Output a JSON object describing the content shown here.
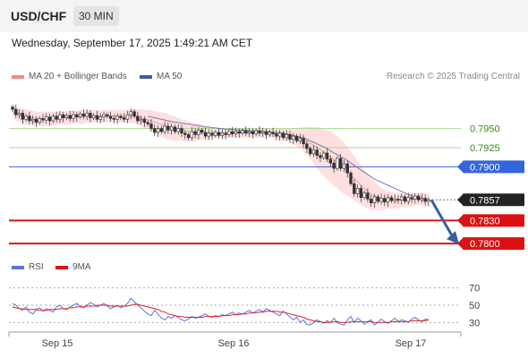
{
  "header": {
    "pair": "USD/CHF",
    "timeframe": "30 MIN"
  },
  "date": "Wednesday, September 17, 2025 1:49:21 AM CET",
  "legend": {
    "ma20": "MA 20 + Bollinger Bands",
    "ma50": "MA 50",
    "rsi": "RSI",
    "rsi9": "9MA",
    "copyright": "Research © 2025 Trading Central"
  },
  "colors": {
    "bands": "#ffd4d4",
    "ma20": "#e8a0a0",
    "ma50": "#6e7fb0",
    "green": "#a8d890",
    "blue": "#3366dd",
    "red": "#dd1111",
    "arrow": "#3a5f9e",
    "rsi": "#5577dd",
    "rsi9": "#dd2222"
  },
  "chart_data": {
    "type": "candlestick",
    "title": "USD/CHF",
    "ylim": [
      0.7785,
      0.7995
    ],
    "x_ticks": [
      "Sep 15",
      "Sep 16",
      "Sep 17"
    ],
    "current_price": 0.7857,
    "levels": [
      {
        "value": 0.795,
        "label": "0.7950",
        "kind": "resistance"
      },
      {
        "value": 0.7925,
        "label": "0.7925",
        "kind": "resistance"
      },
      {
        "value": 0.79,
        "label": "0.7900",
        "kind": "pivot"
      },
      {
        "value": 0.7857,
        "label": "0.7857",
        "kind": "last"
      },
      {
        "value": 0.783,
        "label": "0.7830",
        "kind": "support"
      },
      {
        "value": 0.78,
        "label": "0.7800",
        "kind": "support"
      }
    ],
    "close": [
      0.7975,
      0.7968,
      0.797,
      0.7962,
      0.7966,
      0.796,
      0.7962,
      0.7958,
      0.7963,
      0.7961,
      0.7965,
      0.796,
      0.7966,
      0.7962,
      0.7968,
      0.7964,
      0.7967,
      0.7963,
      0.7968,
      0.7965,
      0.7969,
      0.7966,
      0.797,
      0.7964,
      0.7967,
      0.7962,
      0.7965,
      0.7968,
      0.7966,
      0.7963,
      0.7962,
      0.7966,
      0.7964,
      0.7962,
      0.7968,
      0.7972,
      0.7966,
      0.796,
      0.7962,
      0.7958,
      0.7956,
      0.795,
      0.7945,
      0.795,
      0.7946,
      0.7953,
      0.7948,
      0.7952,
      0.7946,
      0.795,
      0.7944,
      0.7942,
      0.7938,
      0.7946,
      0.7942,
      0.7948,
      0.7945,
      0.794,
      0.7944,
      0.7941,
      0.7945,
      0.7941,
      0.7944,
      0.7942,
      0.7946,
      0.7943,
      0.7946,
      0.7944,
      0.7947,
      0.7944,
      0.7946,
      0.7943,
      0.7947,
      0.7944,
      0.7946,
      0.7942,
      0.7945,
      0.7943,
      0.794,
      0.7944,
      0.7938,
      0.7942,
      0.7936,
      0.794,
      0.7934,
      0.7937,
      0.793,
      0.7924,
      0.7917,
      0.7922,
      0.7915,
      0.7912,
      0.7918,
      0.791,
      0.7905,
      0.7898,
      0.7911,
      0.7898,
      0.7904,
      0.7892,
      0.7878,
      0.7865,
      0.7872,
      0.786,
      0.7866,
      0.7858,
      0.7853,
      0.7861,
      0.7855,
      0.7859,
      0.7854,
      0.786,
      0.7856,
      0.7858,
      0.7857,
      0.7861,
      0.7855,
      0.786,
      0.7858,
      0.7862,
      0.7857,
      0.7859,
      0.7855,
      0.7857
    ],
    "ma20": [
      0.7972,
      0.7969,
      0.7968,
      0.7966,
      0.7965,
      0.7964,
      0.7964,
      0.7963,
      0.7963,
      0.7962,
      0.7963,
      0.7962,
      0.7963,
      0.7963,
      0.7964,
      0.7964,
      0.7964,
      0.7964,
      0.7965,
      0.7965,
      0.7965,
      0.7965,
      0.7966,
      0.7966,
      0.7966,
      0.7966,
      0.7966,
      0.7966,
      0.7966,
      0.7966,
      0.7966,
      0.7966,
      0.7966,
      0.7966,
      0.7966,
      0.7966,
      0.7966,
      0.7965,
      0.7964,
      0.7963,
      0.7962,
      0.796,
      0.7958,
      0.7957,
      0.7955,
      0.7954,
      0.7952,
      0.7951,
      0.795,
      0.7949,
      0.7948,
      0.7947,
      0.7946,
      0.7946,
      0.7945,
      0.7945,
      0.7945,
      0.7944,
      0.7944,
      0.7944,
      0.7944,
      0.7944,
      0.7944,
      0.7944,
      0.7944,
      0.7944,
      0.7944,
      0.7944,
      0.7944,
      0.7944,
      0.7944,
      0.7944,
      0.7944,
      0.7944,
      0.7944,
      0.7944,
      0.7944,
      0.7944,
      0.7943,
      0.7943,
      0.7942,
      0.7942,
      0.7941,
      0.794,
      0.7939,
      0.7938,
      0.7936,
      0.7934,
      0.7931,
      0.7928,
      0.7925,
      0.7922,
      0.7919,
      0.7916,
      0.7913,
      0.7909,
      0.7906,
      0.7902,
      0.7898,
      0.7894,
      0.789,
      0.7885,
      0.7881,
      0.7876,
      0.7872,
      0.7868,
      0.7864,
      0.7862,
      0.786,
      0.7858,
      0.7857,
      0.7857,
      0.7856,
      0.7856,
      0.7856,
      0.7857,
      0.7857,
      0.7857,
      0.7857,
      0.7858,
      0.7858,
      0.7858,
      0.7857,
      0.7857
    ],
    "bb_upper": [
      0.798,
      0.7978,
      0.7977,
      0.7976,
      0.7975,
      0.7974,
      0.7973,
      0.7972,
      0.7972,
      0.7972,
      0.7972,
      0.7972,
      0.7972,
      0.7972,
      0.7972,
      0.7972,
      0.7973,
      0.7973,
      0.7973,
      0.7973,
      0.7974,
      0.7974,
      0.7974,
      0.7974,
      0.7974,
      0.7974,
      0.7974,
      0.7974,
      0.7974,
      0.7974,
      0.7974,
      0.7974,
      0.7974,
      0.7974,
      0.7975,
      0.7975,
      0.7975,
      0.7975,
      0.7975,
      0.7975,
      0.7974,
      0.7974,
      0.7973,
      0.7972,
      0.7971,
      0.797,
      0.7969,
      0.7967,
      0.7966,
      0.7964,
      0.7962,
      0.7961,
      0.7959,
      0.7958,
      0.7957,
      0.7955,
      0.7954,
      0.7953,
      0.7952,
      0.7951,
      0.795,
      0.795,
      0.795,
      0.795,
      0.795,
      0.795,
      0.795,
      0.795,
      0.795,
      0.795,
      0.795,
      0.795,
      0.795,
      0.795,
      0.795,
      0.795,
      0.795,
      0.795,
      0.795,
      0.795,
      0.795,
      0.795,
      0.795,
      0.7951,
      0.7951,
      0.7951,
      0.7952,
      0.7952,
      0.7952,
      0.7952,
      0.7952,
      0.7951,
      0.795,
      0.7948,
      0.7946,
      0.7943,
      0.794,
      0.7936,
      0.7931,
      0.7926,
      0.792,
      0.7914,
      0.7908,
      0.7902,
      0.7896,
      0.789,
      0.7885,
      0.7881,
      0.7877,
      0.7873,
      0.787,
      0.7868,
      0.7867,
      0.7866,
      0.7866,
      0.7866,
      0.7866,
      0.7866,
      0.7866,
      0.7866,
      0.7866,
      0.7866,
      0.7866,
      0.7866
    ],
    "bb_lower": [
      0.7964,
      0.796,
      0.7959,
      0.7956,
      0.7955,
      0.7954,
      0.7955,
      0.7954,
      0.7954,
      0.7952,
      0.7954,
      0.7952,
      0.7954,
      0.7954,
      0.7956,
      0.7956,
      0.7955,
      0.7955,
      0.7957,
      0.7957,
      0.7956,
      0.7956,
      0.7958,
      0.7958,
      0.7958,
      0.7958,
      0.7958,
      0.7958,
      0.7958,
      0.7958,
      0.7958,
      0.7958,
      0.7958,
      0.7958,
      0.7957,
      0.7957,
      0.7957,
      0.7955,
      0.7953,
      0.7951,
      0.795,
      0.7946,
      0.7943,
      0.7942,
      0.7939,
      0.7938,
      0.7935,
      0.7935,
      0.7934,
      0.7934,
      0.7934,
      0.7933,
      0.7933,
      0.7934,
      0.7933,
      0.7935,
      0.7936,
      0.7935,
      0.7936,
      0.7937,
      0.7938,
      0.7938,
      0.7938,
      0.7938,
      0.7938,
      0.7938,
      0.7938,
      0.7938,
      0.7938,
      0.7938,
      0.7938,
      0.7938,
      0.7938,
      0.7938,
      0.7938,
      0.7938,
      0.7938,
      0.7938,
      0.7936,
      0.7936,
      0.7934,
      0.7934,
      0.7932,
      0.7929,
      0.7927,
      0.7925,
      0.792,
      0.7916,
      0.791,
      0.7904,
      0.7898,
      0.7893,
      0.7888,
      0.7884,
      0.788,
      0.7875,
      0.7872,
      0.7868,
      0.7865,
      0.7862,
      0.786,
      0.7856,
      0.7854,
      0.785,
      0.7848,
      0.7846,
      0.7843,
      0.7843,
      0.7843,
      0.7843,
      0.7844,
      0.7846,
      0.7845,
      0.7846,
      0.7846,
      0.7848,
      0.7848,
      0.7848,
      0.7848,
      0.785,
      0.785,
      0.785,
      0.7848,
      0.7848
    ],
    "ma50": [
      null,
      null,
      null,
      null,
      null,
      null,
      null,
      null,
      null,
      null,
      null,
      null,
      null,
      null,
      null,
      null,
      null,
      null,
      null,
      null,
      null,
      null,
      null,
      null,
      null,
      null,
      null,
      null,
      null,
      null,
      null,
      null,
      null,
      null,
      null,
      null,
      null,
      null,
      null,
      null,
      0.7966,
      0.7965,
      0.7964,
      0.7963,
      0.7962,
      0.7961,
      0.796,
      0.7959,
      0.7958,
      0.7958,
      0.7957,
      0.7956,
      0.7956,
      0.7955,
      0.7954,
      0.7954,
      0.7953,
      0.7952,
      0.7952,
      0.7951,
      0.7951,
      0.795,
      0.795,
      0.7949,
      0.7949,
      0.7949,
      0.7948,
      0.7948,
      0.7948,
      0.7948,
      0.7947,
      0.7947,
      0.7947,
      0.7947,
      0.7946,
      0.7946,
      0.7946,
      0.7945,
      0.7945,
      0.7944,
      0.7944,
      0.7943,
      0.7942,
      0.7941,
      0.794,
      0.7939,
      0.7938,
      0.7936,
      0.7934,
      0.7932,
      0.793,
      0.7928,
      0.7926,
      0.7924,
      0.7921,
      0.7918,
      0.7916,
      0.7913,
      0.7911,
      0.7908,
      0.7905,
      0.7902,
      0.7899,
      0.7896,
      0.7893,
      0.789,
      0.7887,
      0.7884,
      0.7882,
      0.788,
      0.7878,
      0.7876,
      0.7874,
      0.7872,
      0.787,
      0.7868,
      0.7866,
      0.7864,
      0.7862,
      0.7861,
      0.786,
      0.7859,
      0.7858,
      0.7857
    ],
    "forecast": {
      "from": 0.7857,
      "to": 0.78
    },
    "rsi": {
      "levels": [
        70,
        50,
        30
      ],
      "ylim": [
        20,
        80
      ],
      "rsi": [
        52,
        50,
        46,
        44,
        48,
        42,
        40,
        45,
        47,
        43,
        46,
        44,
        42,
        48,
        50,
        46,
        45,
        48,
        50,
        52,
        49,
        47,
        50,
        53,
        51,
        48,
        50,
        52,
        49,
        46,
        48,
        50,
        47,
        49,
        52,
        58,
        54,
        50,
        47,
        43,
        40,
        38,
        44,
        40,
        35,
        33,
        37,
        35,
        38,
        36,
        33,
        32,
        34,
        37,
        35,
        36,
        38,
        40,
        37,
        36,
        38,
        37,
        39,
        38,
        40,
        42,
        39,
        41,
        40,
        42,
        44,
        41,
        43,
        45,
        42,
        46,
        44,
        42,
        40,
        38,
        43,
        40,
        36,
        33,
        36,
        30,
        33,
        28,
        27,
        30,
        33,
        31,
        29,
        32,
        30,
        35,
        30,
        28,
        27,
        33,
        37,
        30,
        35,
        32,
        28,
        31,
        33,
        27,
        30,
        34,
        31,
        29,
        32,
        35,
        31,
        33,
        32,
        30,
        34,
        36,
        33,
        31,
        34,
        33
      ],
      "ma9": [
        48,
        47,
        46,
        46,
        45,
        45,
        45,
        45,
        44,
        44,
        44,
        45,
        45,
        45,
        46,
        46,
        46,
        47,
        47,
        48,
        48,
        48,
        49,
        49,
        49,
        50,
        50,
        50,
        50,
        49,
        49,
        49,
        49,
        49,
        49,
        50,
        51,
        51,
        50,
        49,
        48,
        47,
        46,
        45,
        43,
        42,
        40,
        39,
        38,
        37,
        37,
        36,
        36,
        36,
        36,
        36,
        36,
        37,
        37,
        37,
        37,
        37,
        38,
        38,
        38,
        39,
        39,
        39,
        40,
        40,
        41,
        41,
        41,
        42,
        42,
        43,
        43,
        43,
        43,
        42,
        42,
        41,
        40,
        39,
        38,
        37,
        36,
        34,
        33,
        32,
        31,
        31,
        30,
        30,
        30,
        31,
        31,
        30,
        30,
        30,
        31,
        31,
        31,
        31,
        31,
        31,
        31,
        30,
        30,
        30,
        30,
        30,
        31,
        31,
        31,
        31,
        31,
        31,
        32,
        32,
        32,
        32,
        32,
        33
      ]
    }
  }
}
